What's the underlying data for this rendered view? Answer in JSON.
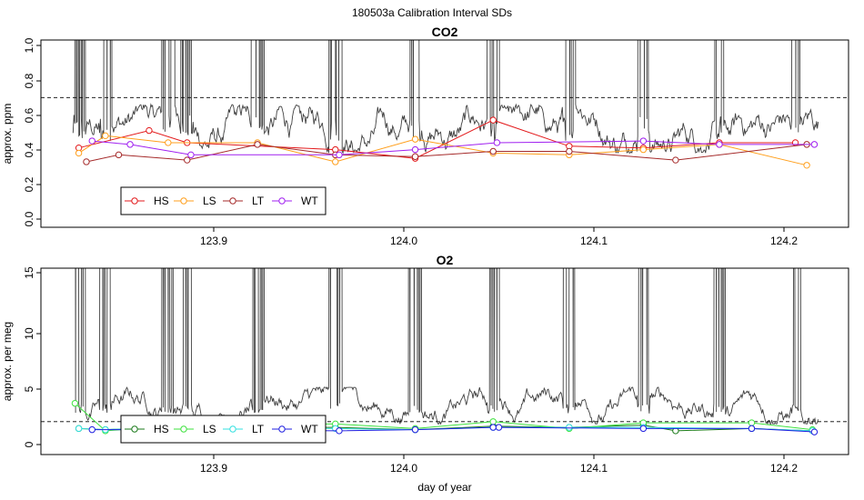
{
  "title": "180503a   Calibration Interval SDs",
  "chart_data": [
    {
      "type": "line",
      "title": "CO2",
      "xlabel": "",
      "ylabel": "approx. ppm",
      "xlim": [
        123.826,
        124.218
      ],
      "ylim": [
        0.0,
        1.0
      ],
      "x_ticks": [
        "123.9",
        "124.0",
        "124.1",
        "124.2"
      ],
      "y_ticks": [
        "0.0",
        "0.2",
        "0.4",
        "0.6",
        "0.8",
        "1.0"
      ],
      "threshold": 0.7,
      "legend_position": "bottom-left",
      "background_trace": {
        "color": "#404040",
        "baseline": 0.5,
        "spike_clusters": [
          123.829,
          123.843,
          123.876,
          123.886,
          123.923,
          123.964,
          124.006,
          124.047,
          124.087,
          124.126,
          124.166,
          124.206
        ]
      },
      "series": [
        {
          "name": "HS",
          "color": "#e31a1c",
          "x": [
            123.829,
            123.866,
            123.886,
            123.964,
            124.006,
            124.047,
            124.087,
            124.126,
            124.166,
            124.206
          ],
          "y": [
            0.41,
            0.51,
            0.44,
            0.4,
            0.35,
            0.57,
            0.42,
            0.41,
            0.44,
            0.44
          ]
        },
        {
          "name": "LS",
          "color": "#ff9f1c",
          "x": [
            123.829,
            123.843,
            123.876,
            123.923,
            123.964,
            124.006,
            124.047,
            124.087,
            124.126,
            124.166,
            124.212
          ],
          "y": [
            0.38,
            0.48,
            0.44,
            0.44,
            0.33,
            0.46,
            0.38,
            0.37,
            0.4,
            0.43,
            0.31
          ]
        },
        {
          "name": "LT",
          "color": "#a52a2a",
          "x": [
            123.833,
            123.85,
            123.886,
            123.923,
            123.964,
            124.006,
            124.047,
            124.087,
            124.143,
            124.212
          ],
          "y": [
            0.33,
            0.37,
            0.34,
            0.43,
            0.37,
            0.36,
            0.39,
            0.39,
            0.34,
            0.43
          ]
        },
        {
          "name": "WT",
          "color": "#a020f0",
          "x": [
            123.836,
            123.856,
            123.888,
            123.966,
            124.006,
            124.049,
            124.126,
            124.166,
            124.216
          ],
          "y": [
            0.45,
            0.43,
            0.37,
            0.37,
            0.4,
            0.44,
            0.45,
            0.43,
            0.43
          ]
        }
      ]
    },
    {
      "type": "line",
      "title": "O2",
      "xlabel": "day of year",
      "ylabel": "approx. per meg",
      "xlim": [
        123.826,
        124.218
      ],
      "ylim": [
        0,
        15
      ],
      "x_ticks": [
        "123.9",
        "124.0",
        "124.1",
        "124.2"
      ],
      "y_ticks": [
        "0",
        "5",
        "10",
        "15"
      ],
      "threshold": 2.0,
      "legend_position": "bottom-left",
      "background_trace": {
        "color": "#404040",
        "baseline": 3.0,
        "spike_clusters": [
          123.829,
          123.843,
          123.876,
          123.886,
          123.923,
          123.964,
          124.006,
          124.047,
          124.087,
          124.126,
          124.166,
          124.206
        ]
      },
      "series": [
        {
          "name": "HS",
          "color": "#1b7a1b",
          "x": [
            123.829,
            123.843,
            123.876,
            123.964,
            124.006,
            124.047,
            124.087,
            124.126,
            124.143,
            124.183,
            124.215
          ],
          "y": [
            1.4,
            1.3,
            1.5,
            1.5,
            1.3,
            1.6,
            1.5,
            1.7,
            1.2,
            1.4,
            1.2
          ]
        },
        {
          "name": "LS",
          "color": "#3ee23e",
          "x": [
            123.827,
            123.843,
            123.876,
            123.964,
            124.006,
            124.047,
            124.087,
            124.126,
            124.183,
            124.215
          ],
          "y": [
            3.6,
            1.2,
            1.6,
            1.8,
            1.4,
            2.0,
            1.4,
            1.9,
            1.9,
            1.3
          ]
        },
        {
          "name": "LT",
          "color": "#33e0e0",
          "x": [
            123.829,
            123.843,
            123.876,
            123.964,
            124.006,
            124.047,
            124.087,
            124.126,
            124.183,
            124.215
          ],
          "y": [
            1.4,
            1.3,
            1.5,
            1.4,
            1.3,
            1.5,
            1.5,
            1.5,
            1.4,
            1.2
          ]
        },
        {
          "name": "WT",
          "color": "#1f1fe0",
          "x": [
            123.836,
            123.856,
            123.966,
            124.006,
            124.047,
            124.05,
            124.126,
            124.183,
            124.216
          ],
          "y": [
            1.3,
            1.3,
            1.2,
            1.3,
            1.5,
            1.5,
            1.4,
            1.4,
            1.1
          ]
        }
      ]
    }
  ]
}
